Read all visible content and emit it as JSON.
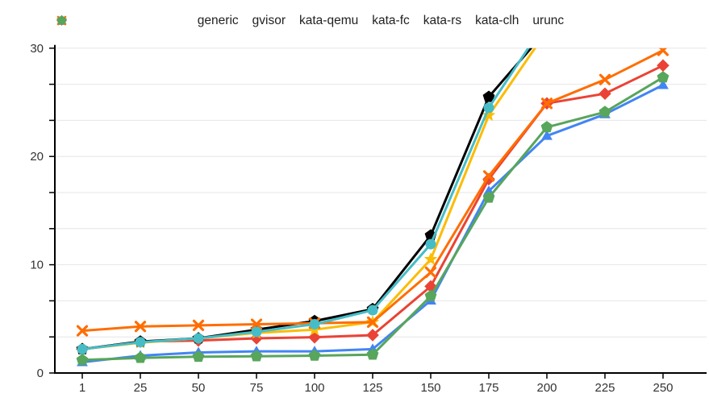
{
  "chart_data": {
    "type": "line",
    "title": "",
    "xlabel": "",
    "ylabel": "",
    "categories": [
      1,
      25,
      50,
      75,
      100,
      125,
      150,
      175,
      200,
      225,
      250
    ],
    "series": [
      {
        "name": "generic",
        "color": "#4285F4",
        "marker": "triangle",
        "values": [
          1.0,
          1.6,
          1.9,
          2.0,
          2.0,
          2.2,
          6.7,
          16.8,
          21.9,
          23.9,
          26.6
        ]
      },
      {
        "name": "gvisor",
        "color": "#EA4335",
        "marker": "diamond",
        "values": [
          2.2,
          2.9,
          3.0,
          3.2,
          3.3,
          3.5,
          8.0,
          17.9,
          24.9,
          25.8,
          28.4
        ]
      },
      {
        "name": "kata-qemu",
        "color": "#FBBC04",
        "marker": "star",
        "values": [
          2.2,
          2.8,
          3.2,
          3.7,
          4.0,
          4.7,
          10.5,
          23.8,
          31.6,
          null,
          null
        ]
      },
      {
        "name": "kata-fc",
        "color": "#000000",
        "marker": "pentagon",
        "values": [
          2.2,
          2.9,
          3.2,
          4.0,
          4.8,
          5.9,
          12.7,
          25.5,
          31.7,
          null,
          null
        ]
      },
      {
        "name": "kata-rs",
        "color": "#FF6D01",
        "marker": "x",
        "values": [
          3.9,
          4.3,
          4.4,
          4.5,
          4.6,
          4.7,
          9.3,
          18.2,
          24.9,
          27.1,
          29.8
        ]
      },
      {
        "name": "kata-clh",
        "color": "#46BDC6",
        "marker": "circle",
        "values": [
          2.2,
          2.85,
          3.2,
          3.8,
          4.5,
          5.8,
          11.9,
          24.5,
          32.6,
          null,
          null
        ]
      },
      {
        "name": "urunc",
        "color": "#58A55C",
        "marker": "pentagon",
        "values": [
          1.2,
          1.4,
          1.5,
          1.55,
          1.6,
          1.7,
          7.1,
          16.2,
          22.7,
          24.1,
          27.3
        ]
      }
    ],
    "ylim": [
      0,
      30
    ],
    "y_major_ticks": [
      0,
      10,
      20,
      30
    ],
    "y_gridline_step": 3.3333,
    "grid": true,
    "legend_position": "top",
    "clip_above_ymax": true
  },
  "colors": {
    "background": "#FFFFFF",
    "gridline": "#E6E6E6",
    "axis": "#000000",
    "tick_label": "#333333",
    "legend_text": "#212121"
  }
}
